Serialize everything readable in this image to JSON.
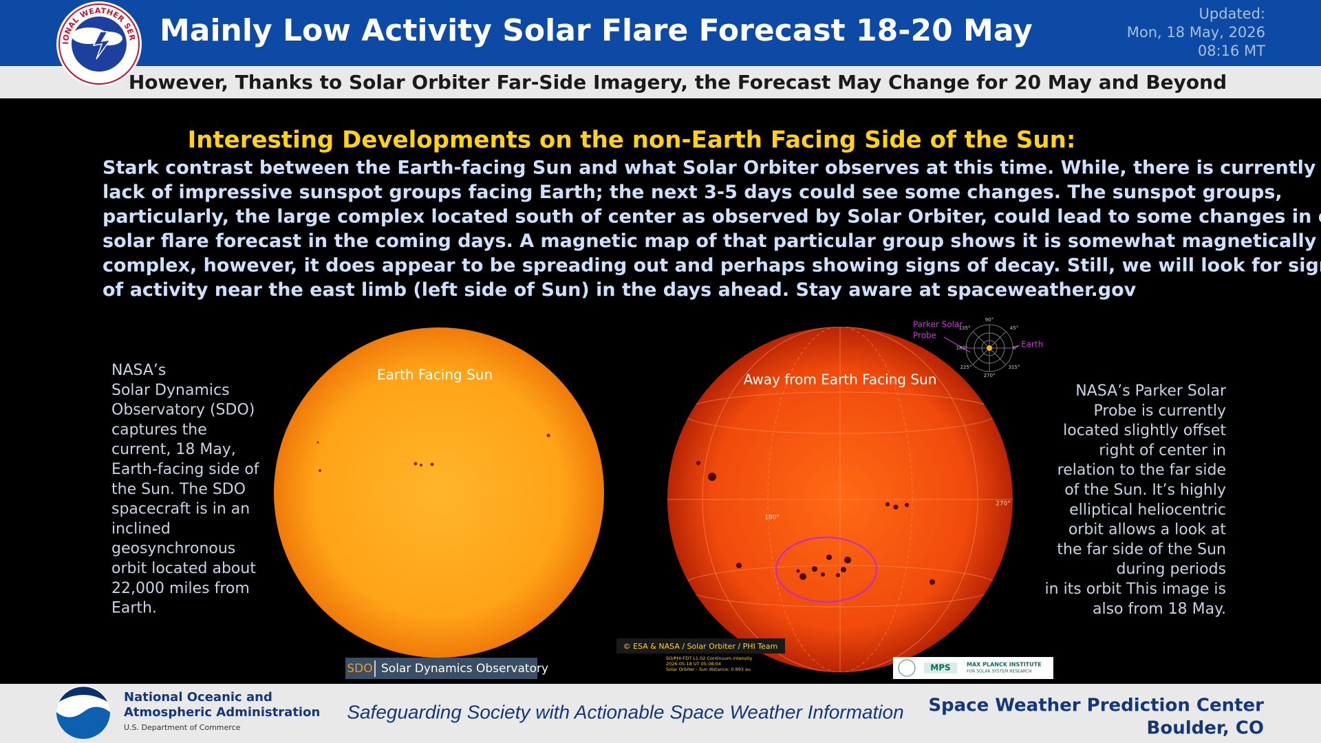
{
  "header": {
    "title": "Mainly Low Activity Solar Flare Forecast 18-20 May",
    "updated": [
      "Updated:",
      "Mon, 18 May, 2026",
      "08:16 MT"
    ],
    "subtitle": "However, Thanks to Solar Orbiter Far-Side Imagery, the Forecast May Change for 20 May and Beyond"
  },
  "section": {
    "heading": "Interesting Developments on the non-Earth Facing Side of the Sun:",
    "paragraph": [
      "Stark contrast between the Earth-facing Sun and what Solar Orbiter observes at this time. While, there is currently a",
      "lack of impressive sunspot groups facing Earth; the next 3-5 days could see some changes. The sunspot groups,",
      "particularly, the large complex located south of center as observed by Solar Orbiter, could lead to some changes in our",
      "solar flare forecast in the coming days. A magnetic map of that particular group shows it is somewhat magnetically",
      "complex, however, it does appear to be spreading out and perhaps showing signs of decay.  Still, we will look for signs",
      "of activity near the east limb (left side of Sun) in the days ahead. Stay aware at spaceweather.gov"
    ]
  },
  "left_panel": {
    "caption": [
      "NASA’s",
      "Solar Dynamics",
      "Observatory (SDO)",
      "captures the",
      "current, 18 May,",
      "Earth-facing side of",
      "the Sun. The SDO",
      "spacecraft is in an",
      "inclined",
      "geosynchronous",
      "orbit located about",
      "22,000 miles from",
      "Earth."
    ],
    "image_label": "Earth Facing Sun",
    "badge_short": "SDO",
    "badge_long": "Solar Dynamics Observatory"
  },
  "right_panel": {
    "image_label": "Away from Earth Facing Sun",
    "caption": [
      "NASA’s Parker Solar",
      "Probe is currently",
      "located slightly offset",
      "right of center in",
      "relation to the far side",
      "of the Sun. It’s highly",
      "elliptical heliocentric",
      "orbit allows a look at",
      "the far side of the Sun",
      "during periods",
      "in its orbit This image is",
      "also from 18 May."
    ],
    "degree_left": "180°",
    "degree_right": "270°",
    "diagram": {
      "probe": [
        "Parker Solar",
        "Probe"
      ],
      "earth": "Earth",
      "angles": [
        "90°",
        "45°",
        "135°",
        "0°",
        "180°",
        "225°",
        "315°",
        "270°"
      ]
    },
    "credit": "© ESA & NASA / Solar Orbiter / PHI Team",
    "meta": [
      "SO/PHI-FDT L1.02 Continuum intensity",
      "2026-05-18 UT 05:08:04",
      "Solar Orbiter - Sun distance: 0.893 au"
    ],
    "mps": [
      "MPS",
      "MAX PLANCK INSTITUTE",
      "FOR SOLAR SYSTEM RESEARCH"
    ]
  },
  "footer": {
    "noaa": [
      "National Oceanic and",
      "Atmospheric Administration",
      "U.S. Department of Commerce"
    ],
    "noaa_logo": "NOAA",
    "nws_logo": "NATIONAL WEATHER SERVICE",
    "tagline": "Safeguarding Society with Actionable Space Weather Information",
    "center": [
      "Space Weather Prediction Center",
      "Boulder, CO"
    ]
  }
}
